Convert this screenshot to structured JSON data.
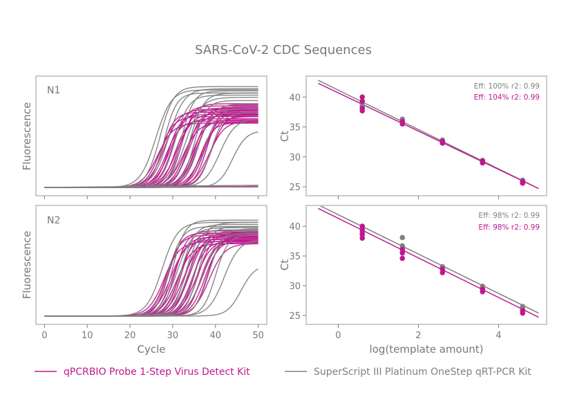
{
  "figure": {
    "title": "SARS-CoV-2 CDC Sequences",
    "colors": {
      "magenta": "#c0168e",
      "gray": "#808080",
      "axis": "#777777",
      "frame": "#999999"
    }
  },
  "legend": [
    {
      "label": "qPCRBIO Probe 1-Step Virus Detect Kit",
      "color": "#c0168e"
    },
    {
      "label": "SuperScript III Platinum OneStep qRT-PCR Kit",
      "color": "#808080"
    }
  ],
  "chart_data": [
    {
      "id": "amp_N1",
      "type": "line",
      "panel_label": "N1",
      "xlabel": "",
      "ylabel": "Fluorescence",
      "xlim": [
        -2,
        52
      ],
      "xticks": [
        0,
        10,
        20,
        30,
        40,
        50
      ],
      "show_xtick_labels": false,
      "baseline": 0.02,
      "series_groups": [
        {
          "name": "qPCRBIO Probe 1-Step Virus Detect Kit",
          "color": "#c0168e",
          "ct": [
            26.5,
            27,
            27.5,
            28,
            28.5,
            29,
            29.5,
            30,
            30.5,
            31,
            31.5,
            32,
            32.5,
            33,
            33.5,
            34,
            34.5,
            35,
            35.5,
            36,
            36.5,
            37,
            37.5,
            38,
            38.5,
            39
          ],
          "plateau": [
            0.62,
            0.68,
            0.72,
            0.75,
            0.64,
            0.7,
            0.74,
            0.78,
            0.66,
            0.71,
            0.76,
            0.8,
            0.63,
            0.69,
            0.73,
            0.77,
            0.65,
            0.7,
            0.74,
            0.79,
            0.62,
            0.68,
            0.72,
            0.76,
            0.64,
            0.7
          ],
          "flat_plateau": [
            0.03,
            0.025
          ]
        },
        {
          "name": "SuperScript III Platinum OneStep qRT-PCR Kit",
          "color": "#808080",
          "ct": [
            26,
            27,
            28,
            29,
            30.5,
            32,
            33,
            34,
            35,
            36,
            37.5,
            39,
            41,
            44
          ],
          "plateau": [
            0.93,
            0.96,
            0.9,
            0.94,
            0.88,
            0.92,
            0.86,
            0.9,
            0.83,
            0.8,
            0.76,
            0.72,
            0.66,
            0.55
          ],
          "flat_plateau": [
            0.04,
            0.03
          ]
        }
      ]
    },
    {
      "id": "std_N1",
      "type": "scatter",
      "ylabel": "Ct",
      "xlabel": "",
      "xlim": [
        -0.8,
        5.2
      ],
      "ylim": [
        23.5,
        43.5
      ],
      "yticks": [
        25,
        30,
        35,
        40
      ],
      "xticks": [
        0,
        2,
        4
      ],
      "show_xtick_labels": false,
      "annotations": [
        {
          "text": "Eff: 100% r2: 0.99",
          "color": "#808080"
        },
        {
          "text": "Eff: 104% r2: 0.99",
          "color": "#c0168e"
        }
      ],
      "series": [
        {
          "name": "SuperScript III Platinum OneStep qRT-PCR Kit",
          "color": "#808080",
          "points": [
            [
              0.6,
              38.6
            ],
            [
              0.6,
              38.2
            ],
            [
              1.6,
              36.3
            ],
            [
              1.6,
              35.8
            ],
            [
              2.6,
              32.8
            ],
            [
              2.6,
              32.5
            ],
            [
              3.6,
              29.4
            ],
            [
              4.6,
              26.1
            ],
            [
              4.6,
              25.8
            ]
          ],
          "fit": {
            "x": [
              -0.5,
              5.0
            ],
            "y": [
              42.8,
              24.7
            ]
          }
        },
        {
          "name": "qPCRBIO Probe 1-Step Virus Detect Kit",
          "color": "#c0168e",
          "points": [
            [
              0.6,
              40.0
            ],
            [
              0.6,
              39.3
            ],
            [
              0.6,
              38.1
            ],
            [
              0.6,
              37.7
            ],
            [
              1.6,
              35.9
            ],
            [
              1.6,
              35.5
            ],
            [
              2.6,
              32.6
            ],
            [
              2.6,
              32.3
            ],
            [
              3.6,
              29.3
            ],
            [
              3.6,
              29.0
            ],
            [
              4.6,
              25.9
            ],
            [
              4.6,
              25.6
            ]
          ],
          "fit": {
            "x": [
              -0.5,
              5.0
            ],
            "y": [
              42.3,
              24.7
            ]
          }
        }
      ]
    },
    {
      "id": "amp_N2",
      "type": "line",
      "panel_label": "N2",
      "xlabel": "Cycle",
      "ylabel": "Fluorescence",
      "xlim": [
        -2,
        52
      ],
      "xticks": [
        0,
        10,
        20,
        30,
        40,
        50
      ],
      "show_xtick_labels": true,
      "baseline": 0.02,
      "series_groups": [
        {
          "name": "qPCRBIO Probe 1-Step Virus Detect Kit",
          "color": "#c0168e",
          "ct": [
            28,
            28.5,
            29,
            29.5,
            30,
            30.5,
            31,
            31.5,
            32,
            32.5,
            33,
            33.5,
            34,
            34.5,
            35,
            35.5,
            36,
            36.5,
            37,
            37.5,
            38,
            38.5
          ],
          "plateau": [
            0.72,
            0.78,
            0.8,
            0.74,
            0.76,
            0.82,
            0.7,
            0.77,
            0.8,
            0.73,
            0.79,
            0.75,
            0.81,
            0.72,
            0.78,
            0.74,
            0.8,
            0.71,
            0.77,
            0.73,
            0.76,
            0.7
          ],
          "flat_plateau": []
        },
        {
          "name": "SuperScript III Platinum OneStep qRT-PCR Kit",
          "color": "#808080",
          "ct": [
            27.5,
            29,
            30,
            31,
            32,
            33,
            34,
            35,
            36,
            37,
            38.5,
            40,
            42,
            46
          ],
          "plateau": [
            0.9,
            0.86,
            0.92,
            0.85,
            0.88,
            0.83,
            0.9,
            0.82,
            0.86,
            0.8,
            0.84,
            0.78,
            0.74,
            0.5
          ],
          "flat_plateau": []
        }
      ]
    },
    {
      "id": "std_N2",
      "type": "scatter",
      "ylabel": "Ct",
      "xlabel": "log(template amount)",
      "xlim": [
        -0.8,
        5.2
      ],
      "ylim": [
        23.5,
        43.5
      ],
      "yticks": [
        25,
        30,
        35,
        40
      ],
      "xticks": [
        0,
        2,
        4
      ],
      "show_xtick_labels": true,
      "annotations": [
        {
          "text": "Eff: 98% r2: 0.99",
          "color": "#808080"
        },
        {
          "text": "Eff: 98% r2: 0.99",
          "color": "#c0168e"
        }
      ],
      "series": [
        {
          "name": "SuperScript III Platinum OneStep qRT-PCR Kit",
          "color": "#808080",
          "points": [
            [
              0.6,
              39.6
            ],
            [
              0.6,
              38.9
            ],
            [
              1.6,
              38.1
            ],
            [
              1.6,
              36.7
            ],
            [
              1.6,
              36.2
            ],
            [
              2.6,
              33.2
            ],
            [
              2.6,
              32.8
            ],
            [
              3.6,
              29.9
            ],
            [
              3.6,
              29.5
            ],
            [
              4.6,
              26.5
            ],
            [
              4.6,
              26.1
            ]
          ],
          "fit": {
            "x": [
              -0.5,
              5.0
            ],
            "y": [
              43.6,
              25.4
            ]
          }
        },
        {
          "name": "qPCRBIO Probe 1-Step Virus Detect Kit",
          "color": "#c0168e",
          "points": [
            [
              0.6,
              40.0
            ],
            [
              0.6,
              39.3
            ],
            [
              0.6,
              38.6
            ],
            [
              0.6,
              38.0
            ],
            [
              1.6,
              36.1
            ],
            [
              1.6,
              35.5
            ],
            [
              1.6,
              34.6
            ],
            [
              2.6,
              32.8
            ],
            [
              2.6,
              32.2
            ],
            [
              3.6,
              29.4
            ],
            [
              3.6,
              29.0
            ],
            [
              4.6,
              25.8
            ],
            [
              4.6,
              25.4
            ]
          ],
          "fit": {
            "x": [
              -0.5,
              5.0
            ],
            "y": [
              43.0,
              24.7
            ]
          }
        }
      ]
    }
  ]
}
